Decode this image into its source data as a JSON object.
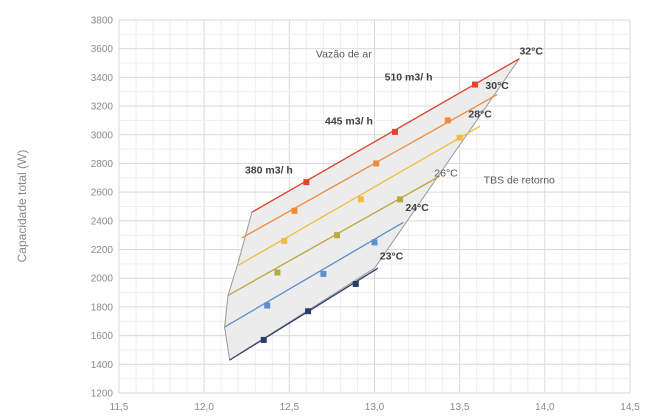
{
  "chart_data": {
    "type": "line",
    "title": "",
    "xlabel": "",
    "ylabel": "Capacidade total (W)",
    "xlim": [
      11.5,
      14.5
    ],
    "ylim": [
      1200,
      3800
    ],
    "xticks": [
      "11,5",
      "12,0",
      "12,5",
      "13,0",
      "13,5",
      "14,0",
      "14,5"
    ],
    "yticks": [
      "1200",
      "1400",
      "1600",
      "1800",
      "2000",
      "2200",
      "2400",
      "2600",
      "2800",
      "3000",
      "3200",
      "3400",
      "3600",
      "3800"
    ],
    "grid": true,
    "envelope": [
      {
        "x": 12.28,
        "y": 2460
      },
      {
        "x": 13.85,
        "y": 3530
      },
      {
        "x": 13.0,
        "y": 2070
      },
      {
        "x": 12.15,
        "y": 1430
      },
      {
        "x": 12.12,
        "y": 1660
      },
      {
        "x": 12.14,
        "y": 1880
      },
      {
        "x": 12.2,
        "y": 2110
      }
    ],
    "series": [
      {
        "name": "32°C",
        "color": "#e0452b",
        "line": [
          [
            12.28,
            2460
          ],
          [
            13.85,
            3530
          ]
        ],
        "points": [
          [
            12.6,
            2670
          ],
          [
            13.12,
            3020
          ],
          [
            13.59,
            3350
          ]
        ]
      },
      {
        "name": "30°C",
        "color": "#f08a3c",
        "line": [
          [
            12.22,
            2280
          ],
          [
            13.72,
            3280
          ]
        ],
        "points": [
          [
            12.53,
            2470
          ],
          [
            13.01,
            2800
          ],
          [
            13.43,
            3100
          ]
        ]
      },
      {
        "name": "28°C",
        "color": "#f2bd3f",
        "line": [
          [
            12.2,
            2090
          ],
          [
            13.62,
            3060
          ]
        ],
        "points": [
          [
            12.47,
            2260
          ],
          [
            12.92,
            2550
          ],
          [
            13.5,
            2980
          ]
        ]
      },
      {
        "name": "26°C",
        "color": "#b9a83a",
        "line": [
          [
            12.14,
            1880
          ],
          [
            13.38,
            2710
          ]
        ],
        "points": [
          [
            12.43,
            2040
          ],
          [
            12.78,
            2300
          ],
          [
            13.15,
            2550
          ]
        ]
      },
      {
        "name": "24°C",
        "color": "#5a8fd0",
        "line": [
          [
            12.12,
            1660
          ],
          [
            13.17,
            2390
          ]
        ],
        "points": [
          [
            12.37,
            1810
          ],
          [
            12.7,
            2030
          ],
          [
            13.0,
            2250
          ]
        ]
      },
      {
        "name": "23°C",
        "color": "#2b3e6b",
        "line": [
          [
            12.15,
            1430
          ],
          [
            13.02,
            2070
          ]
        ],
        "points": [
          [
            12.35,
            1570
          ],
          [
            12.61,
            1770
          ],
          [
            12.89,
            1960
          ]
        ]
      }
    ],
    "flow_labels": [
      {
        "text": "380 m3/ h",
        "x": 12.38,
        "y": 2730
      },
      {
        "text": "445 m3/ h",
        "x": 12.85,
        "y": 3070
      },
      {
        "text": "510 m3/ h",
        "x": 13.2,
        "y": 3380
      }
    ],
    "temp_labels": [
      {
        "text": "32°C",
        "x": 13.92,
        "y": 3560
      },
      {
        "text": "30°C",
        "x": 13.72,
        "y": 3320
      },
      {
        "text": "28°C",
        "x": 13.62,
        "y": 3120
      },
      {
        "text": "26°C",
        "x": 13.42,
        "y": 2710
      },
      {
        "text": "24°C",
        "x": 13.25,
        "y": 2470
      },
      {
        "text": "23°C",
        "x": 13.1,
        "y": 2130
      }
    ],
    "annotations": [
      {
        "text": "Vazão de ar",
        "x": 12.82,
        "y": 3540
      },
      {
        "text": "TBS de retorno",
        "x": 13.85,
        "y": 2660
      }
    ]
  }
}
